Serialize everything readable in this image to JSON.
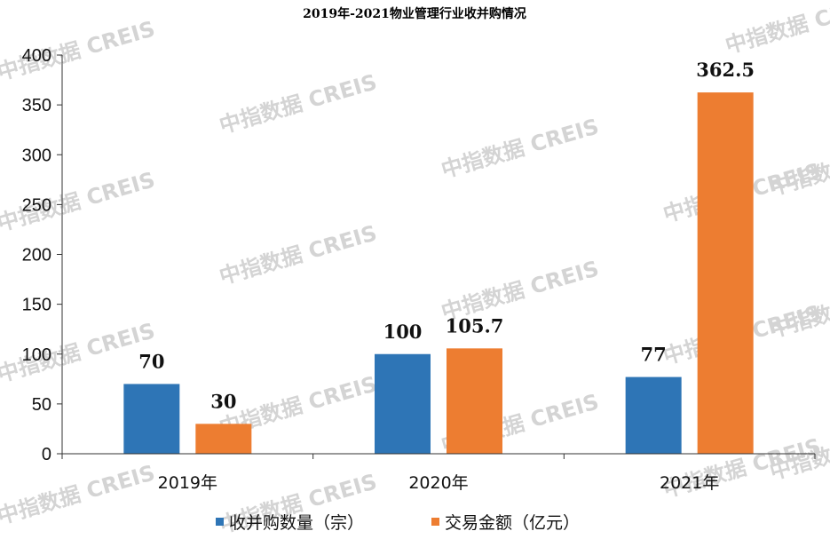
{
  "chart_data": {
    "type": "bar",
    "title": "2019年-2021物业管理行业收并购情况",
    "categories": [
      "2019年",
      "2020年",
      "2021年"
    ],
    "series": [
      {
        "name": "收并购数量（宗）",
        "values": [
          70,
          100,
          77
        ],
        "labels": [
          "70",
          "100",
          "77"
        ],
        "color": "#2e75b6"
      },
      {
        "name": "交易金额（亿元）",
        "values": [
          30,
          105.7,
          362.5
        ],
        "labels": [
          "30",
          "105.7",
          "362.5"
        ],
        "color": "#ed7d31"
      }
    ],
    "ylim": [
      0,
      400
    ],
    "yticks": [
      "0",
      "50",
      "100",
      "150",
      "200",
      "250",
      "300",
      "350",
      "400"
    ],
    "grid": false,
    "legend_position": "bottom",
    "watermark": "中指数据 CREIS"
  }
}
